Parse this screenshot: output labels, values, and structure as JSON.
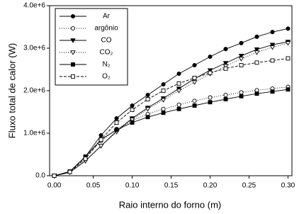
{
  "chart_data": {
    "type": "line",
    "x_label": "Raio interno do forno (m)",
    "y_label": "Fluxo total de calor (W)",
    "x": [
      0,
      0.02,
      0.04,
      0.06,
      0.08,
      0.1,
      0.12,
      0.14,
      0.16,
      0.18,
      0.2,
      0.22,
      0.24,
      0.26,
      0.28,
      0.3
    ],
    "series": [
      {
        "name": "Ar",
        "color": "#000000",
        "marker": "circle",
        "filled": true,
        "dash": "none",
        "values": [
          0,
          100000.0,
          450000.0,
          950000.0,
          1350000.0,
          1650000.0,
          1900000.0,
          2150000.0,
          2400000.0,
          2600000.0,
          2800000.0,
          2980000.0,
          3120000.0,
          3270000.0,
          3380000.0,
          3460000.0
        ]
      },
      {
        "name": "argônio",
        "color": "#000000",
        "marker": "circle",
        "filled": false,
        "dash": "1 2",
        "values": [
          0,
          100000.0,
          420000.0,
          820000.0,
          1100000.0,
          1300000.0,
          1450000.0,
          1570000.0,
          1670000.0,
          1760000.0,
          1840000.0,
          1900000.0,
          1960000.0,
          2010000.0,
          2050000.0,
          2090000.0
        ]
      },
      {
        "name": "CO",
        "color": "#000000",
        "marker": "triangle-down",
        "filled": true,
        "dash": "none",
        "values": [
          0,
          80000.0,
          350000.0,
          700000.0,
          1050000.0,
          1350000.0,
          1600000.0,
          1820000.0,
          2050000.0,
          2280000.0,
          2480000.0,
          2650000.0,
          2820000.0,
          2970000.0,
          3080000.0,
          3150000.0
        ]
      },
      {
        "name": "CO₂",
        "color": "#000000",
        "marker": "triangle-down",
        "filled": false,
        "dash": "1 2",
        "values": [
          0,
          80000.0,
          350000.0,
          700000.0,
          1030000.0,
          1320000.0,
          1570000.0,
          1780000.0,
          2000000.0,
          2200000.0,
          2400000.0,
          2580000.0,
          2750000.0,
          2900000.0,
          3020000.0,
          3120000.0
        ]
      },
      {
        "name": "N₂",
        "color": "#000000",
        "marker": "square",
        "filled": true,
        "dash": "none",
        "values": [
          0,
          100000.0,
          450000.0,
          850000.0,
          1080000.0,
          1250000.0,
          1380000.0,
          1480000.0,
          1570000.0,
          1650000.0,
          1730000.0,
          1800000.0,
          1870000.0,
          1930000.0,
          1980000.0,
          2030000.0
        ]
      },
      {
        "name": "O₂",
        "color": "#000000",
        "marker": "square",
        "filled": false,
        "dash": "4 2",
        "values": [
          0,
          90000.0,
          400000.0,
          850000.0,
          1250000.0,
          1550000.0,
          1800000.0,
          2000000.0,
          2170000.0,
          2300000.0,
          2420000.0,
          2520000.0,
          2600000.0,
          2660000.0,
          2710000.0,
          2760000.0
        ]
      }
    ],
    "xlim": [
      -0.006,
      0.305
    ],
    "ylim": [
      0,
      4000000.0
    ],
    "xticks": [
      {
        "value": 0,
        "label": "0.00"
      },
      {
        "value": 0.05,
        "label": "0.05"
      },
      {
        "value": 0.1,
        "label": "0.10"
      },
      {
        "value": 0.15,
        "label": "0.15"
      },
      {
        "value": 0.2,
        "label": "0.20"
      },
      {
        "value": 0.25,
        "label": "0.25"
      },
      {
        "value": 0.3,
        "label": "0.30"
      }
    ],
    "yticks": [
      {
        "value": 0,
        "label": "0.0"
      },
      {
        "value": 1000000.0,
        "label": "1.0e+6"
      },
      {
        "value": 2000000.0,
        "label": "2.0e+6"
      },
      {
        "value": 3000000.0,
        "label": "3.0e+6"
      },
      {
        "value": 4000000.0,
        "label": "4.0e+6"
      }
    ],
    "legend": "upper left"
  }
}
